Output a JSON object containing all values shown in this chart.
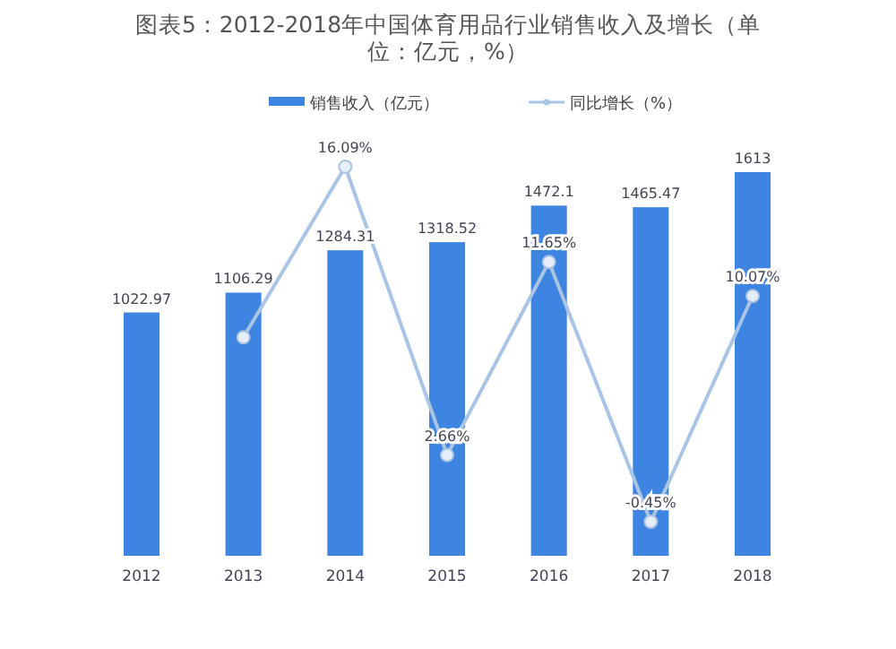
{
  "chart_data": {
    "type": "bar",
    "title": "图表5：2012-2018年中国体育用品行业销售收入及增长（单位：亿元，%）",
    "categories": [
      "2012",
      "2013",
      "2014",
      "2015",
      "2016",
      "2017",
      "2018"
    ],
    "series": [
      {
        "name": "销售收入（亿元）",
        "color": "#3d85e0",
        "values": [
          1022.97,
          1106.29,
          1284.31,
          1318.52,
          1472.1,
          1465.47,
          1613
        ]
      },
      {
        "name": "同比增长（%）",
        "type": "line",
        "axis": "y2",
        "color": "#a9c4e4",
        "values": [
          null,
          8.14,
          16.09,
          2.66,
          11.65,
          -0.45,
          10.07
        ],
        "value_labels": [
          null,
          null,
          "16.09%",
          "2.66%",
          "11.65%",
          "-0.45%",
          "10.07%"
        ]
      }
    ],
    "data_labels": true,
    "tick_labels": "x",
    "legend": "top",
    "marker": "circle"
  }
}
